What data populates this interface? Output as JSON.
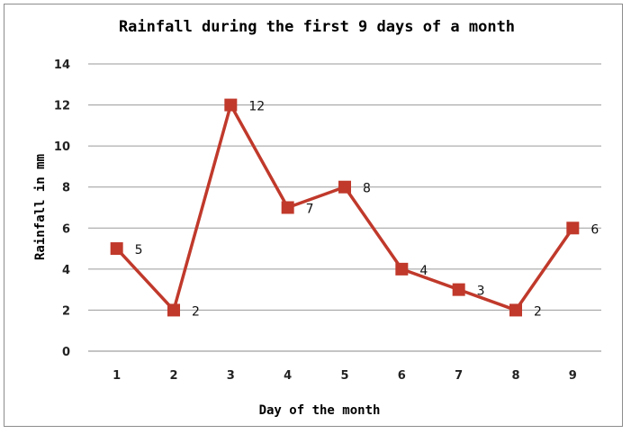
{
  "chart_data": {
    "type": "line",
    "title": "Rainfall during the first 9 days of a month",
    "xlabel": "Day of the month",
    "ylabel": "Rainfall in mm",
    "categories": [
      "1",
      "2",
      "3",
      "4",
      "5",
      "6",
      "7",
      "8",
      "9"
    ],
    "series": [
      {
        "values": [
          5,
          2,
          12,
          7,
          8,
          4,
          3,
          2,
          6
        ],
        "color": "#c0392b"
      }
    ],
    "data_labels": [
      "5",
      "2",
      "12",
      "7",
      "8",
      "4",
      "3",
      "2",
      "6"
    ],
    "ylim": [
      0,
      14
    ],
    "yticks": [
      "0",
      "2",
      "4",
      "6",
      "8",
      "10",
      "12",
      "14"
    ],
    "grid": true,
    "marker": "square",
    "legend": "none"
  }
}
